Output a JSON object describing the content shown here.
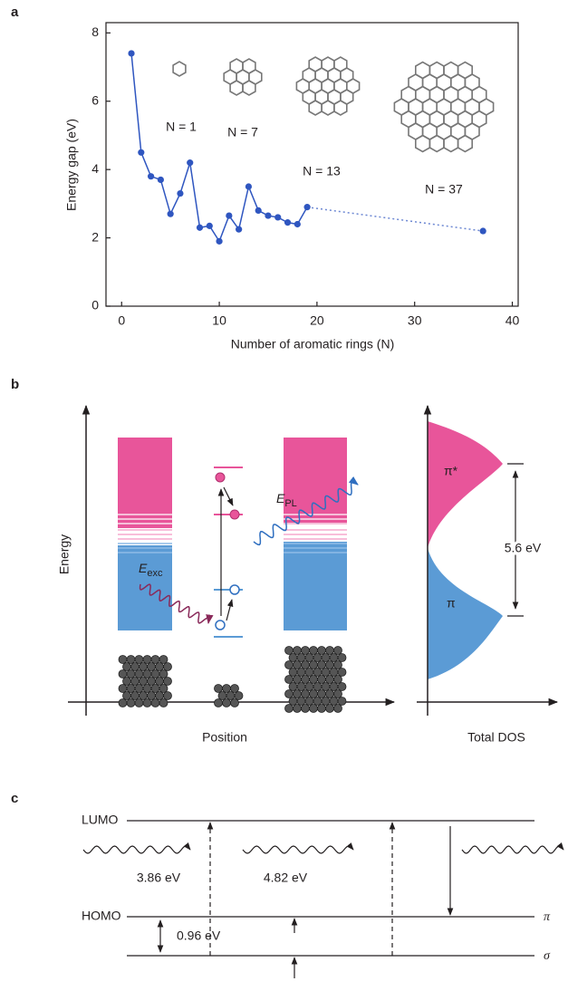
{
  "chart_data": {
    "type": "line",
    "panel_label": "a",
    "x": [
      1,
      2,
      3,
      4,
      5,
      6,
      7,
      8,
      9,
      10,
      11,
      12,
      13,
      14,
      15,
      16,
      17,
      18,
      19,
      37
    ],
    "values": [
      7.4,
      4.5,
      3.8,
      3.7,
      2.7,
      3.3,
      4.2,
      2.3,
      2.35,
      1.9,
      2.65,
      2.25,
      3.5,
      2.8,
      2.65,
      2.6,
      2.45,
      2.4,
      2.9,
      2.2
    ],
    "color": "#2f56c0",
    "dotted_after_x": 19,
    "xlim": [
      -1.6,
      40.6
    ],
    "xticks": [
      0,
      10,
      20,
      30,
      40
    ],
    "ylim": [
      0,
      8.3
    ],
    "yticks": [
      0,
      2,
      4,
      6,
      8
    ],
    "x_label": "Number of aromatic rings (N)",
    "y_label": "Energy gap (eV)",
    "annotations": [
      "N = 1",
      "N = 7",
      "N = 13",
      "N = 37"
    ]
  },
  "diagram_b": {
    "panel_label": "b",
    "y_label": "Energy",
    "x_label": "Position",
    "dos_label": "Total DOS",
    "exc_symbol": "E",
    "exc_sub": "exc",
    "pl_symbol": "E",
    "pl_sub": "PL",
    "pi_star": "π*",
    "pi": "π",
    "gap": "5.6 eV"
  },
  "diagram_c": {
    "panel_label": "c",
    "lumo": "LUMO",
    "homo": "HOMO",
    "energy_1": "3.86 eV",
    "energy_2": "4.82 eV",
    "energy_3": "0.96 eV",
    "pi": "π",
    "sigma": "σ"
  }
}
